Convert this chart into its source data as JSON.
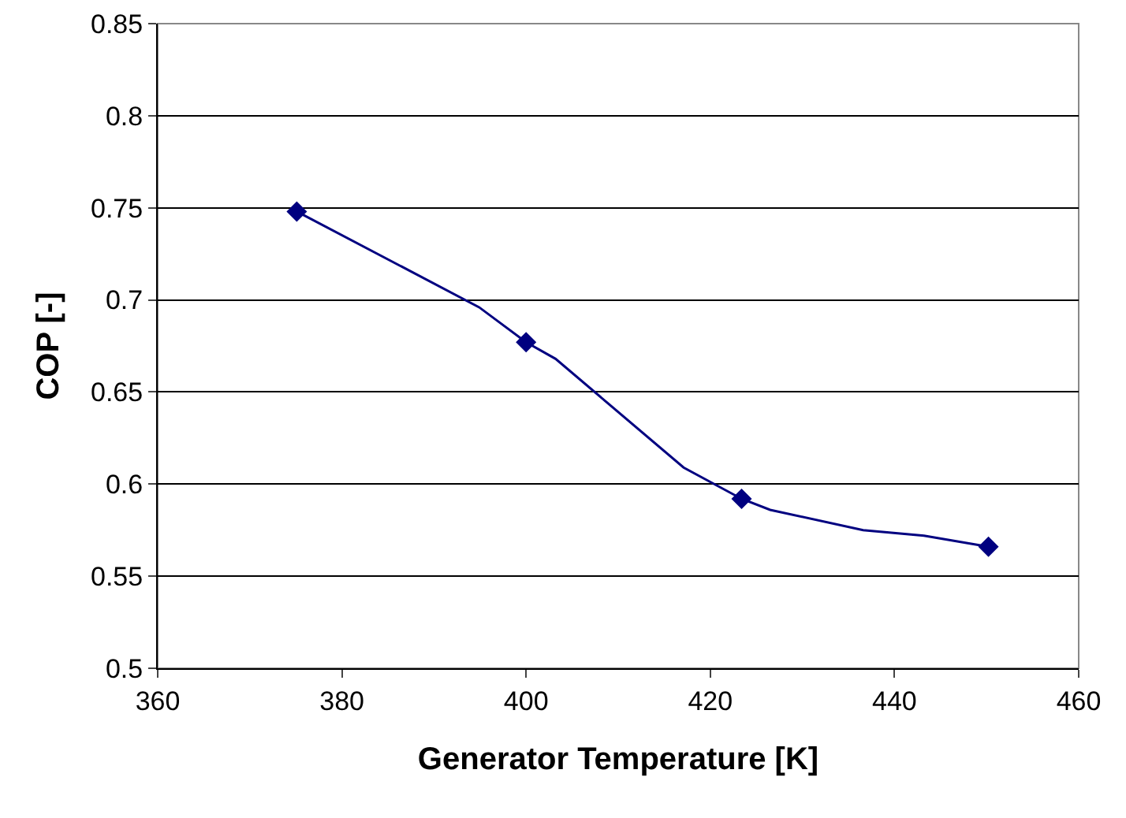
{
  "chart_data": {
    "type": "line",
    "xlabel": "Generator Temperature [K]",
    "ylabel": "COP [-]",
    "xlim": [
      360,
      460
    ],
    "xticks": [
      360,
      380,
      400,
      420,
      440,
      460
    ],
    "ylim": [
      0.5,
      0.85
    ],
    "yticks": [
      0.5,
      0.55,
      0.6,
      0.65,
      0.7,
      0.75,
      0.8,
      0.85
    ],
    "grid": "y",
    "series": [
      {
        "marker": "none",
        "color": "#000080",
        "x": [
          375.1,
          394.9,
          400,
          403.2,
          417.1,
          423.4,
          426.5,
          436.6,
          443.2,
          450.2
        ],
        "values": [
          0.748,
          0.696,
          0.677,
          0.668,
          0.609,
          0.592,
          0.586,
          0.575,
          0.572,
          0.566
        ]
      },
      {
        "type": "scatter",
        "marker": "diamond",
        "color": "#000080",
        "x": [
          375.1,
          400,
          423.4,
          450.2
        ],
        "values": [
          0.748,
          0.677,
          0.592,
          0.566
        ]
      }
    ]
  }
}
